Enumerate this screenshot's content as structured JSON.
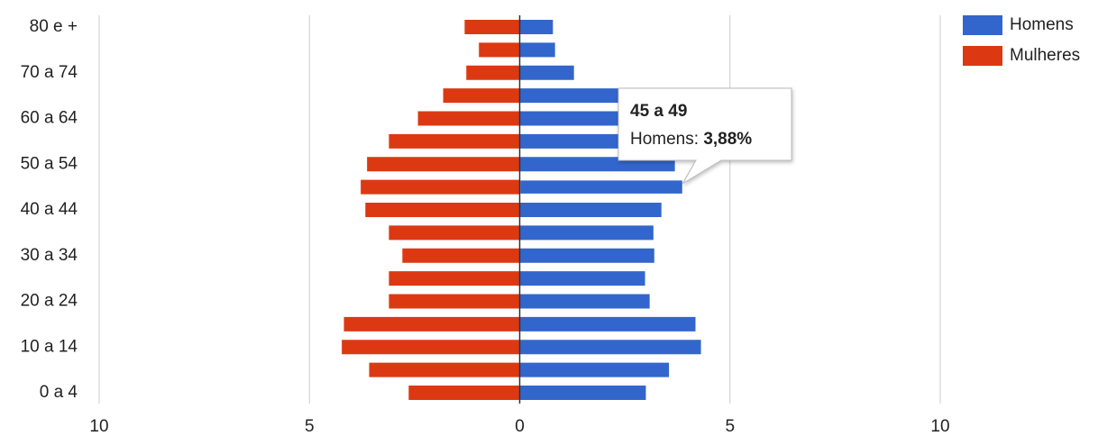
{
  "chart_data": {
    "type": "pyramid",
    "categories": [
      "0 a 4",
      null,
      "10 a 14",
      null,
      "20 a 24",
      null,
      "30 a 34",
      null,
      "40 a 44",
      null,
      "50 a 54",
      null,
      "60 a 64",
      null,
      "70 a 74",
      null,
      "80 e +"
    ],
    "series": [
      {
        "name": "Homens",
        "color": "#3366cc",
        "values": [
          3.0,
          3.55,
          4.31,
          4.18,
          3.09,
          2.98,
          3.2,
          3.18,
          3.37,
          3.88,
          3.69,
          3.3,
          2.8,
          2.5,
          1.29,
          0.84,
          0.79
        ]
      },
      {
        "name": "Mulheres",
        "color": "#dc3912",
        "values": [
          -2.64,
          -3.58,
          -4.23,
          -4.18,
          -3.11,
          -3.11,
          -2.79,
          -3.11,
          -3.67,
          -3.78,
          -3.63,
          -3.11,
          -2.42,
          -1.82,
          -1.27,
          -0.97,
          -1.31
        ]
      }
    ],
    "xlim": [
      -10,
      10
    ],
    "xticks": [
      {
        "value": -10,
        "label": "10"
      },
      {
        "value": -5,
        "label": "5"
      },
      0,
      5,
      10
    ],
    "grid": true,
    "legend": "right",
    "tooltip": {
      "title": "45 a 49",
      "label": "Homens:",
      "value": "3,88%",
      "series": 0,
      "index": 9
    }
  }
}
